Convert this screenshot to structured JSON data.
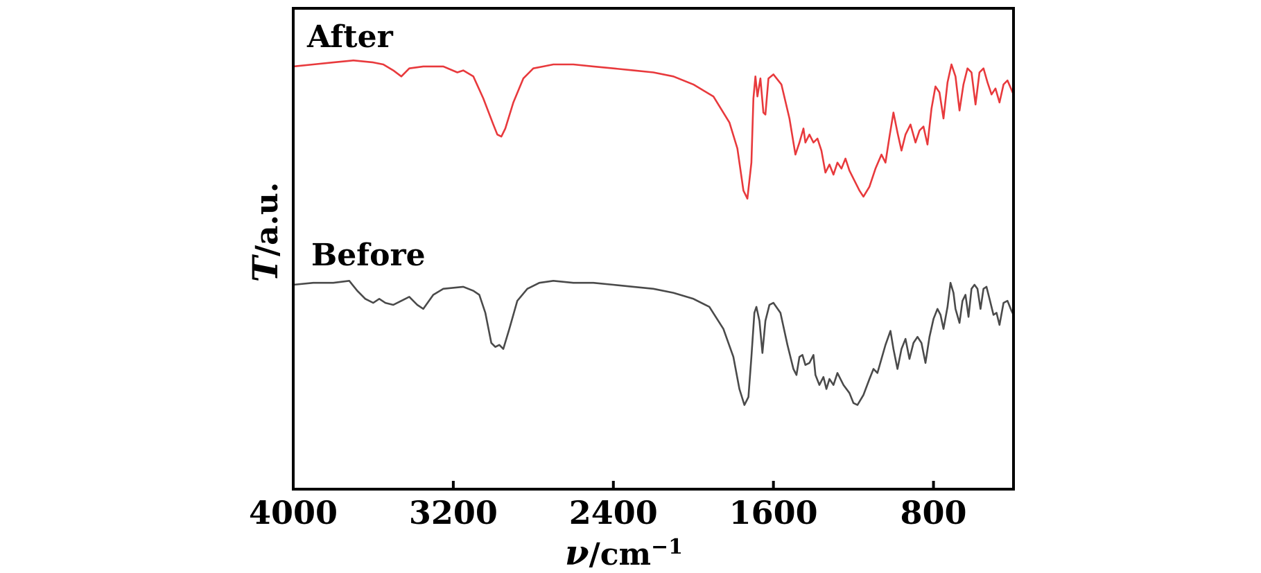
{
  "chart_data": {
    "type": "line",
    "xlabel_symbol": "ν",
    "xlabel_unit": "/cm",
    "xlabel_exp": "−1",
    "ylabel_symbol": "T",
    "ylabel_unit": "/a.u.",
    "xlim": [
      4000,
      400
    ],
    "ylim": [
      0,
      2.4
    ],
    "x_reversed": true,
    "x_ticks": [
      4000,
      3200,
      2400,
      1600,
      800
    ],
    "x_tick_labels": [
      "4000",
      "3200",
      "2400",
      "1600",
      "800"
    ],
    "y_ticks_shown": false,
    "grid": false,
    "series": [
      {
        "name": "After",
        "color": "#e8393c",
        "points": [
          [
            4000,
            2.11
          ],
          [
            3900,
            2.12
          ],
          [
            3800,
            2.13
          ],
          [
            3700,
            2.14
          ],
          [
            3600,
            2.13
          ],
          [
            3550,
            2.12
          ],
          [
            3500,
            2.09
          ],
          [
            3460,
            2.06
          ],
          [
            3420,
            2.1
          ],
          [
            3350,
            2.11
          ],
          [
            3250,
            2.11
          ],
          [
            3180,
            2.08
          ],
          [
            3150,
            2.09
          ],
          [
            3100,
            2.06
          ],
          [
            3050,
            1.95
          ],
          [
            3000,
            1.82
          ],
          [
            2980,
            1.77
          ],
          [
            2960,
            1.76
          ],
          [
            2940,
            1.8
          ],
          [
            2900,
            1.93
          ],
          [
            2850,
            2.05
          ],
          [
            2800,
            2.1
          ],
          [
            2750,
            2.11
          ],
          [
            2700,
            2.12
          ],
          [
            2600,
            2.12
          ],
          [
            2500,
            2.11
          ],
          [
            2400,
            2.1
          ],
          [
            2300,
            2.09
          ],
          [
            2200,
            2.08
          ],
          [
            2100,
            2.06
          ],
          [
            2000,
            2.02
          ],
          [
            1900,
            1.96
          ],
          [
            1820,
            1.83
          ],
          [
            1780,
            1.7
          ],
          [
            1750,
            1.49
          ],
          [
            1730,
            1.45
          ],
          [
            1710,
            1.63
          ],
          [
            1700,
            1.95
          ],
          [
            1690,
            2.06
          ],
          [
            1680,
            1.96
          ],
          [
            1665,
            2.05
          ],
          [
            1650,
            1.88
          ],
          [
            1640,
            1.87
          ],
          [
            1625,
            2.05
          ],
          [
            1600,
            2.07
          ],
          [
            1560,
            2.02
          ],
          [
            1520,
            1.85
          ],
          [
            1490,
            1.67
          ],
          [
            1470,
            1.73
          ],
          [
            1450,
            1.8
          ],
          [
            1440,
            1.73
          ],
          [
            1420,
            1.77
          ],
          [
            1400,
            1.73
          ],
          [
            1380,
            1.75
          ],
          [
            1360,
            1.69
          ],
          [
            1340,
            1.58
          ],
          [
            1320,
            1.62
          ],
          [
            1300,
            1.57
          ],
          [
            1280,
            1.63
          ],
          [
            1260,
            1.6
          ],
          [
            1240,
            1.65
          ],
          [
            1220,
            1.59
          ],
          [
            1200,
            1.55
          ],
          [
            1170,
            1.49
          ],
          [
            1150,
            1.46
          ],
          [
            1120,
            1.51
          ],
          [
            1090,
            1.6
          ],
          [
            1060,
            1.67
          ],
          [
            1040,
            1.63
          ],
          [
            1020,
            1.76
          ],
          [
            1000,
            1.88
          ],
          [
            980,
            1.78
          ],
          [
            960,
            1.69
          ],
          [
            940,
            1.77
          ],
          [
            915,
            1.82
          ],
          [
            890,
            1.73
          ],
          [
            870,
            1.79
          ],
          [
            850,
            1.81
          ],
          [
            830,
            1.72
          ],
          [
            810,
            1.9
          ],
          [
            790,
            2.01
          ],
          [
            770,
            1.98
          ],
          [
            750,
            1.85
          ],
          [
            730,
            2.03
          ],
          [
            710,
            2.12
          ],
          [
            690,
            2.06
          ],
          [
            670,
            1.89
          ],
          [
            650,
            2.02
          ],
          [
            630,
            2.1
          ],
          [
            610,
            2.08
          ],
          [
            590,
            1.92
          ],
          [
            570,
            2.08
          ],
          [
            550,
            2.1
          ],
          [
            530,
            2.03
          ],
          [
            510,
            1.97
          ],
          [
            490,
            2.0
          ],
          [
            470,
            1.93
          ],
          [
            450,
            2.02
          ],
          [
            430,
            2.04
          ],
          [
            400,
            1.97
          ]
        ]
      },
      {
        "name": "Before",
        "color": "#4a4a4a",
        "points": [
          [
            4000,
            1.02
          ],
          [
            3900,
            1.03
          ],
          [
            3800,
            1.03
          ],
          [
            3720,
            1.04
          ],
          [
            3680,
            0.99
          ],
          [
            3640,
            0.95
          ],
          [
            3600,
            0.93
          ],
          [
            3570,
            0.95
          ],
          [
            3540,
            0.93
          ],
          [
            3500,
            0.92
          ],
          [
            3460,
            0.94
          ],
          [
            3420,
            0.96
          ],
          [
            3380,
            0.92
          ],
          [
            3350,
            0.9
          ],
          [
            3300,
            0.97
          ],
          [
            3250,
            1.0
          ],
          [
            3150,
            1.01
          ],
          [
            3100,
            0.99
          ],
          [
            3070,
            0.97
          ],
          [
            3040,
            0.88
          ],
          [
            3010,
            0.73
          ],
          [
            2990,
            0.71
          ],
          [
            2970,
            0.72
          ],
          [
            2950,
            0.7
          ],
          [
            2920,
            0.8
          ],
          [
            2880,
            0.94
          ],
          [
            2830,
            1.0
          ],
          [
            2770,
            1.03
          ],
          [
            2700,
            1.04
          ],
          [
            2600,
            1.03
          ],
          [
            2500,
            1.03
          ],
          [
            2400,
            1.02
          ],
          [
            2300,
            1.01
          ],
          [
            2200,
            1.0
          ],
          [
            2100,
            0.98
          ],
          [
            2000,
            0.95
          ],
          [
            1920,
            0.91
          ],
          [
            1850,
            0.8
          ],
          [
            1800,
            0.66
          ],
          [
            1770,
            0.5
          ],
          [
            1745,
            0.42
          ],
          [
            1725,
            0.46
          ],
          [
            1710,
            0.66
          ],
          [
            1695,
            0.88
          ],
          [
            1685,
            0.91
          ],
          [
            1670,
            0.84
          ],
          [
            1655,
            0.68
          ],
          [
            1640,
            0.84
          ],
          [
            1620,
            0.92
          ],
          [
            1600,
            0.93
          ],
          [
            1565,
            0.88
          ],
          [
            1530,
            0.72
          ],
          [
            1500,
            0.6
          ],
          [
            1485,
            0.57
          ],
          [
            1470,
            0.66
          ],
          [
            1455,
            0.67
          ],
          [
            1440,
            0.62
          ],
          [
            1420,
            0.63
          ],
          [
            1400,
            0.67
          ],
          [
            1390,
            0.57
          ],
          [
            1370,
            0.52
          ],
          [
            1350,
            0.56
          ],
          [
            1335,
            0.5
          ],
          [
            1320,
            0.55
          ],
          [
            1300,
            0.52
          ],
          [
            1280,
            0.58
          ],
          [
            1250,
            0.52
          ],
          [
            1220,
            0.48
          ],
          [
            1200,
            0.43
          ],
          [
            1180,
            0.42
          ],
          [
            1150,
            0.47
          ],
          [
            1120,
            0.55
          ],
          [
            1100,
            0.6
          ],
          [
            1080,
            0.58
          ],
          [
            1060,
            0.65
          ],
          [
            1040,
            0.72
          ],
          [
            1015,
            0.79
          ],
          [
            1000,
            0.7
          ],
          [
            980,
            0.6
          ],
          [
            960,
            0.7
          ],
          [
            940,
            0.75
          ],
          [
            920,
            0.65
          ],
          [
            900,
            0.73
          ],
          [
            880,
            0.76
          ],
          [
            860,
            0.73
          ],
          [
            840,
            0.63
          ],
          [
            820,
            0.76
          ],
          [
            800,
            0.85
          ],
          [
            780,
            0.9
          ],
          [
            765,
            0.87
          ],
          [
            750,
            0.8
          ],
          [
            730,
            0.91
          ],
          [
            715,
            1.03
          ],
          [
            700,
            0.98
          ],
          [
            690,
            0.9
          ],
          [
            670,
            0.83
          ],
          [
            655,
            0.94
          ],
          [
            640,
            0.97
          ],
          [
            625,
            0.86
          ],
          [
            610,
            1.0
          ],
          [
            595,
            1.02
          ],
          [
            580,
            1.0
          ],
          [
            565,
            0.9
          ],
          [
            550,
            1.0
          ],
          [
            535,
            1.01
          ],
          [
            520,
            0.95
          ],
          [
            500,
            0.87
          ],
          [
            485,
            0.88
          ],
          [
            470,
            0.82
          ],
          [
            450,
            0.93
          ],
          [
            430,
            0.94
          ],
          [
            410,
            0.89
          ],
          [
            400,
            0.87
          ]
        ]
      }
    ]
  }
}
